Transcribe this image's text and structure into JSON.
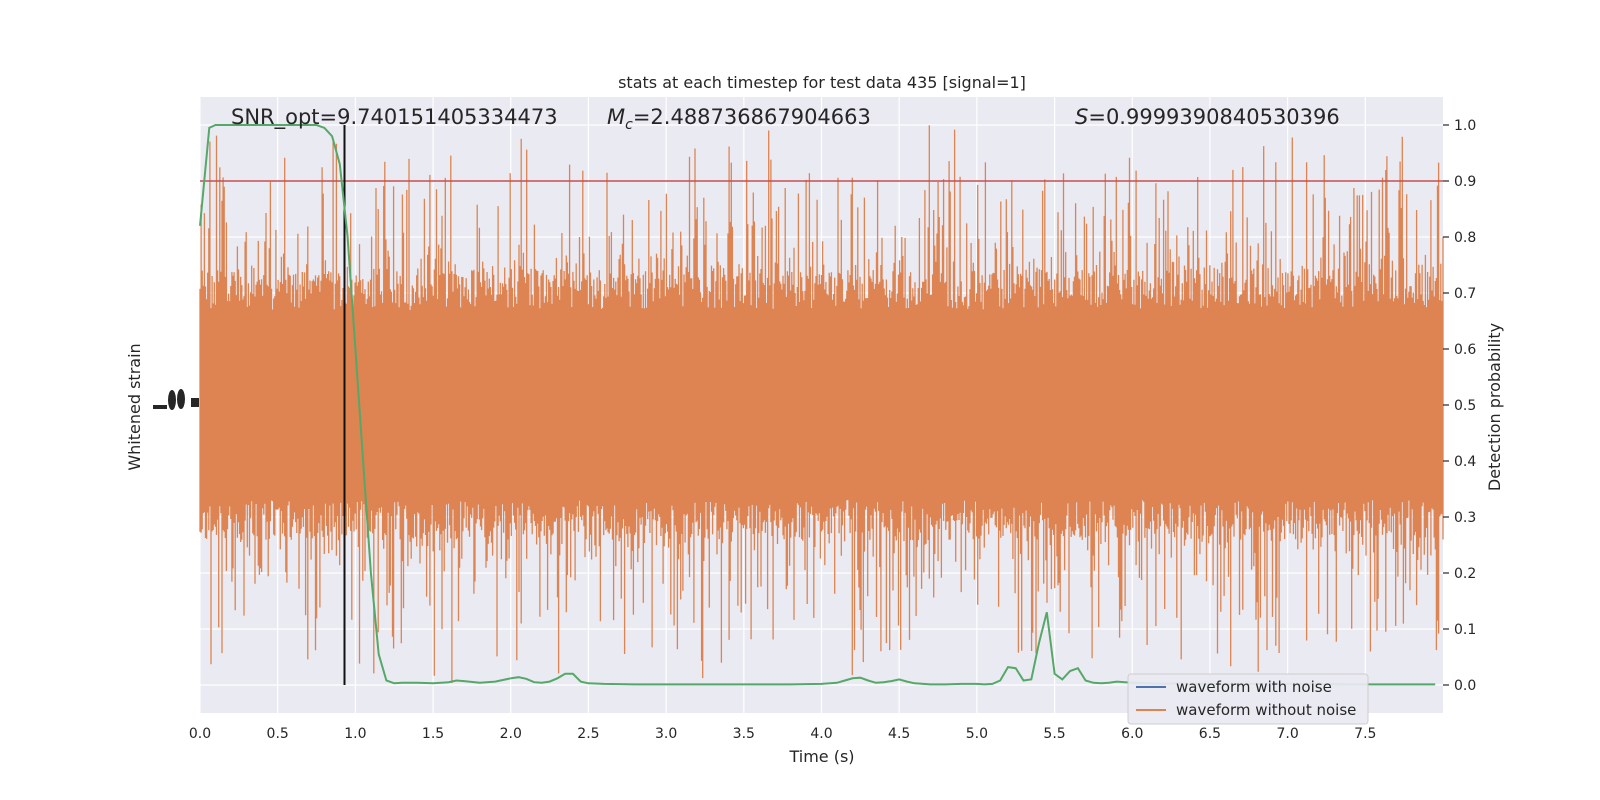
{
  "chart_data": {
    "type": "line",
    "title": "stats at each timestep for test data 435 [signal=1]",
    "xlabel": "Time (s)",
    "ylabel_left": "Whitened strain",
    "ylabel_right": "Detection probability",
    "xlim": [
      0,
      8
    ],
    "ylim_right": [
      -0.05,
      1.05
    ],
    "x_ticks": [
      "0.0",
      "0.5",
      "1.0",
      "1.5",
      "2.0",
      "2.5",
      "3.0",
      "3.5",
      "4.0",
      "4.5",
      "5.0",
      "5.5",
      "6.0",
      "6.5",
      "7.0",
      "7.5"
    ],
    "x_tick_values": [
      0,
      0.5,
      1,
      1.5,
      2,
      2.5,
      3,
      3.5,
      4,
      4.5,
      5,
      5.5,
      6,
      6.5,
      7,
      7.5
    ],
    "y_right_ticks": [
      "0.0",
      "0.1",
      "0.2",
      "0.3",
      "0.4",
      "0.5",
      "0.6",
      "0.7",
      "0.8",
      "0.9",
      "1.0"
    ],
    "y_right_tick_values": [
      0,
      0.1,
      0.2,
      0.3,
      0.4,
      0.5,
      0.6,
      0.7,
      0.8,
      0.9,
      1.0
    ],
    "grid": true,
    "legend_position": "lower-right",
    "annotations": {
      "snr": "SNR_opt=9.740151405334473",
      "mc_symbol": "M",
      "mc_sub": "c",
      "mc_value": "=2.488736867904663",
      "s_symbol": "S",
      "s_value": "=0.9999390840530396"
    },
    "threshold": 0.9,
    "vertical_line_x": 0.93,
    "series": [
      {
        "name": "waveform with noise",
        "color": "#4c72b0"
      },
      {
        "name": "waveform without noise",
        "color": "#dd8452"
      }
    ],
    "probability_series": {
      "color": "#55a868",
      "x": [
        0,
        0.06,
        0.1,
        0.15,
        0.2,
        0.25,
        0.3,
        0.35,
        0.4,
        0.45,
        0.5,
        0.55,
        0.6,
        0.65,
        0.7,
        0.75,
        0.8,
        0.85,
        0.9,
        0.95,
        1.0,
        1.05,
        1.1,
        1.15,
        1.2,
        1.25,
        1.3,
        1.4,
        1.5,
        1.6,
        1.65,
        1.7,
        1.8,
        1.9,
        2.0,
        2.05,
        2.1,
        2.15,
        2.2,
        2.25,
        2.3,
        2.35,
        2.4,
        2.45,
        2.5,
        2.6,
        2.8,
        3.0,
        3.2,
        3.4,
        3.6,
        3.8,
        4.0,
        4.1,
        4.15,
        4.2,
        4.25,
        4.3,
        4.35,
        4.4,
        4.45,
        4.5,
        4.55,
        4.6,
        4.7,
        4.8,
        4.9,
        5.0,
        5.05,
        5.1,
        5.15,
        5.2,
        5.25,
        5.3,
        5.35,
        5.4,
        5.45,
        5.5,
        5.55,
        5.6,
        5.65,
        5.7,
        5.75,
        5.8,
        5.85,
        5.9,
        6.0,
        6.1,
        6.2,
        6.3,
        6.4,
        6.5,
        6.6,
        6.7,
        6.8,
        6.9,
        7.0,
        7.2,
        7.4,
        7.6,
        7.8,
        7.95
      ],
      "y": [
        0.82,
        0.995,
        1.0,
        1.0,
        1.0,
        1.0,
        1.0,
        1.0,
        1.0,
        1.0,
        1.0,
        1.0,
        1.0,
        1.0,
        1.0,
        1.0,
        0.995,
        0.98,
        0.93,
        0.8,
        0.6,
        0.4,
        0.2,
        0.055,
        0.008,
        0.003,
        0.004,
        0.004,
        0.003,
        0.005,
        0.008,
        0.007,
        0.004,
        0.006,
        0.012,
        0.014,
        0.011,
        0.005,
        0.004,
        0.006,
        0.012,
        0.02,
        0.02,
        0.006,
        0.003,
        0.002,
        0.001,
        0.001,
        0.001,
        0.001,
        0.001,
        0.001,
        0.002,
        0.004,
        0.008,
        0.012,
        0.013,
        0.008,
        0.004,
        0.005,
        0.007,
        0.01,
        0.006,
        0.003,
        0.001,
        0.001,
        0.002,
        0.002,
        0.001,
        0.002,
        0.008,
        0.032,
        0.03,
        0.008,
        0.01,
        0.075,
        0.13,
        0.02,
        0.01,
        0.025,
        0.03,
        0.008,
        0.004,
        0.003,
        0.004,
        0.006,
        0.004,
        0.003,
        0.002,
        0.003,
        0.002,
        0.002,
        0.002,
        0.002,
        0.002,
        0.003,
        0.002,
        0.002,
        0.001,
        0.001,
        0.001,
        0.001
      ]
    }
  }
}
